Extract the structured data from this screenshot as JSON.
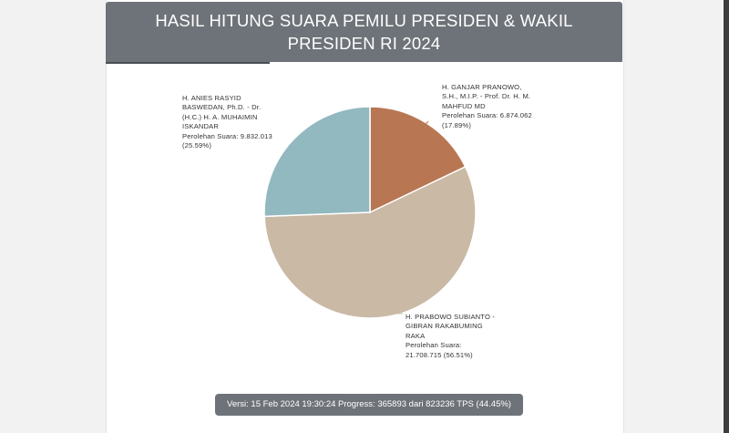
{
  "header": {
    "title": "HASIL HITUNG SUARA PEMILU PRESIDEN & WAKIL PRESIDEN RI 2024"
  },
  "chart_data": {
    "type": "pie",
    "title": "HASIL HITUNG SUARA PEMILU PRESIDEN & WAKIL PRESIDEN RI 2024",
    "slices": [
      {
        "key": "ganjar",
        "name": "H. GANJAR PRANOWO, S.H., M.I.P. - Prof. Dr. H. M. MAHFUD MD",
        "name_lines": [
          "H. GANJAR PRANOWO,",
          "S.H., M.I.P. - Prof. Dr. H. M.",
          "MAHFUD MD"
        ],
        "votes_text": "Perolehan Suara: 6.874.062",
        "percent_text": "(17.89%)",
        "votes": 6874062,
        "percent": 17.89,
        "color": "#b87653"
      },
      {
        "key": "prabowo",
        "name": "H. PRABOWO SUBIANTO - GIBRAN RAKABUMING RAKA",
        "name_lines": [
          "H. PRABOWO SUBIANTO -",
          "GIBRAN RAKABUMING",
          "RAKA"
        ],
        "votes_text": "Perolehan Suara:",
        "percent_text": "21.708.715 (56.51%)",
        "votes": 21708715,
        "percent": 56.51,
        "color": "#c9b9a5"
      },
      {
        "key": "anies",
        "name": "H. ANIES RASYID BASWEDAN, Ph.D. - Dr. (H.C.) H. A. MUHAIMIN ISKANDAR",
        "name_lines": [
          "H. ANIES RASYID",
          "BASWEDAN, Ph.D. - Dr.",
          "(H.C.) H. A. MUHAIMIN",
          "ISKANDAR"
        ],
        "votes_text": "Perolehan Suara: 9.832.013",
        "percent_text": "(25.59%)",
        "votes": 9832013,
        "percent": 25.59,
        "color": "#92b9bf"
      }
    ]
  },
  "footer": {
    "version_text": "Versi: 15 Feb 2024 19:30:24 Progress: 365893 dari 823236 TPS (44.45%)"
  }
}
